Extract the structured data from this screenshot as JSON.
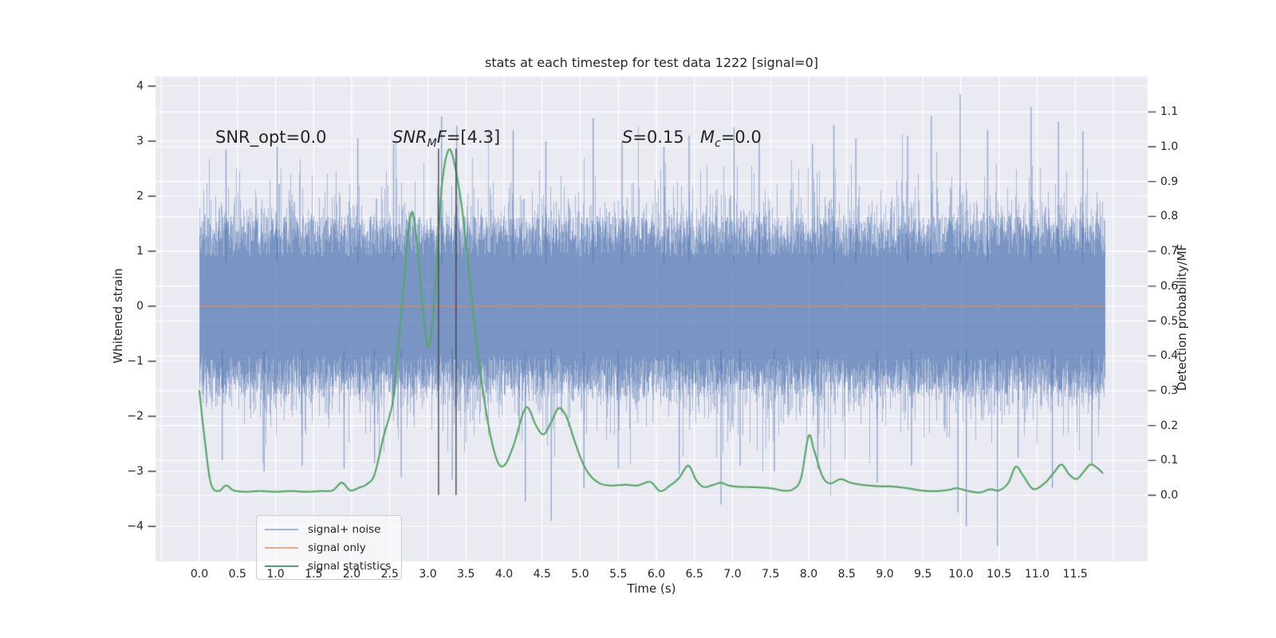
{
  "title": "stats at each timestep for test data 1222 [signal=0]",
  "annotations": {
    "snr_opt": {
      "text": "SNR_opt=0.0"
    },
    "snr_mf": {
      "base": "SNR",
      "sub": "M",
      "base2": "F",
      "value": "=[4.3]"
    },
    "s": {
      "base": "S",
      "value": "=0.15"
    },
    "m_c": {
      "base": "M",
      "sub": "c",
      "value": "=0.0"
    }
  },
  "axes": {
    "x": {
      "label": "Time (s)",
      "ticks": [
        {
          "v": 0.0,
          "label": "0.0"
        },
        {
          "v": 0.5,
          "label": "0.5"
        },
        {
          "v": 1.0,
          "label": "1.0"
        },
        {
          "v": 1.5,
          "label": "1.5"
        },
        {
          "v": 2.0,
          "label": "2.0"
        },
        {
          "v": 2.5,
          "label": "2.5"
        },
        {
          "v": 3.0,
          "label": "3.0"
        },
        {
          "v": 3.5,
          "label": "3.5"
        },
        {
          "v": 4.0,
          "label": "4.0"
        },
        {
          "v": 4.5,
          "label": "4.5"
        },
        {
          "v": 5.0,
          "label": "5.0"
        },
        {
          "v": 5.5,
          "label": "5.5"
        },
        {
          "v": 6.0,
          "label": "6.0"
        },
        {
          "v": 6.5,
          "label": "6.5"
        },
        {
          "v": 7.0,
          "label": "7.0"
        },
        {
          "v": 7.5,
          "label": "7.5"
        },
        {
          "v": 8.0,
          "label": "8.0"
        },
        {
          "v": 8.5,
          "label": "8.5"
        },
        {
          "v": 9.0,
          "label": "9.0"
        },
        {
          "v": 9.5,
          "label": "9.5"
        },
        {
          "v": 10.0,
          "label": "10.0"
        },
        {
          "v": 10.5,
          "label": "10.5"
        },
        {
          "v": 11.0,
          "label": "11.0"
        },
        {
          "v": 11.5,
          "label": "11.5"
        }
      ]
    },
    "y_left": {
      "label": "Whitened strain",
      "ticks": [
        {
          "v": 4,
          "label": "4"
        },
        {
          "v": 3,
          "label": "3"
        },
        {
          "v": 2,
          "label": "2"
        },
        {
          "v": 1,
          "label": "1"
        },
        {
          "v": 0,
          "label": "0"
        },
        {
          "v": -1,
          "label": "−1"
        },
        {
          "v": -2,
          "label": "−2"
        },
        {
          "v": -3,
          "label": "−3"
        },
        {
          "v": -4,
          "label": "−4"
        }
      ]
    },
    "y_right": {
      "label": "Detection probability/MF",
      "ticks": [
        {
          "v": 1.1,
          "label": "1.1"
        },
        {
          "v": 1.0,
          "label": "1.0"
        },
        {
          "v": 0.9,
          "label": "0.9"
        },
        {
          "v": 0.8,
          "label": "0.8"
        },
        {
          "v": 0.7,
          "label": "0.7"
        },
        {
          "v": 0.6,
          "label": "0.6"
        },
        {
          "v": 0.5,
          "label": "0.5"
        },
        {
          "v": 0.4,
          "label": "0.4"
        },
        {
          "v": 0.3,
          "label": "0.3"
        },
        {
          "v": 0.2,
          "label": "0.2"
        },
        {
          "v": 0.1,
          "label": "0.1"
        },
        {
          "v": 0.0,
          "label": "0.0"
        }
      ]
    }
  },
  "legend": {
    "items": [
      {
        "label": "signal+ noise",
        "color": "#a2b4d9"
      },
      {
        "label": "signal only",
        "color": "#eaa68f"
      },
      {
        "label": "signal statistics",
        "color": "#4aa566"
      }
    ]
  },
  "colors": {
    "axes_bg": "#eaeaf2",
    "grid": "#ffffff",
    "noise_blue": "#4c72b0",
    "signal_orange": "#dd8452",
    "stats_green": "#55a868",
    "marker_line": "#474747",
    "tick": "#3c3c3c",
    "text": "#262626"
  },
  "chart_data": {
    "type": "line",
    "title": "stats at each timestep for test data 1222 [signal=0]",
    "xlabel": "Time (s)",
    "ylabel_left": "Whitened strain",
    "ylabel_right": "Detection probability/MF",
    "xlim": [
      -0.58,
      12.45
    ],
    "ylim_left": [
      -4.64,
      4.17
    ],
    "ylim_right": [
      -0.19,
      1.2
    ],
    "grid": true,
    "legend_position": "lower left",
    "event_markers_t": [
      3.14,
      3.37
    ],
    "series": [
      {
        "name": "signal+ noise",
        "axis": "left",
        "kind": "noise_band",
        "t_range": [
          0,
          11.88
        ],
        "mean": 0.0,
        "core_band": [
          -1.6,
          1.6
        ],
        "typical_envelope": [
          -2.7,
          2.7
        ],
        "seed": 42,
        "spikes_pos": [
          [
            0.35,
            2.85
          ],
          [
            1.02,
            2.9
          ],
          [
            2.08,
            3.05
          ],
          [
            2.55,
            2.95
          ],
          [
            3.18,
            3.45
          ],
          [
            3.38,
            3.28
          ],
          [
            4.12,
            3.2
          ],
          [
            4.55,
            3.0
          ],
          [
            5.17,
            3.42
          ],
          [
            5.55,
            3.0
          ],
          [
            6.1,
            2.9
          ],
          [
            6.43,
            3.1
          ],
          [
            7.02,
            3.25
          ],
          [
            7.35,
            3.05
          ],
          [
            8.05,
            2.95
          ],
          [
            8.33,
            3.3
          ],
          [
            8.62,
            3.05
          ],
          [
            9.3,
            3.1
          ],
          [
            9.61,
            3.46
          ],
          [
            9.99,
            3.85
          ],
          [
            10.35,
            3.2
          ],
          [
            10.92,
            3.62
          ],
          [
            11.28,
            3.35
          ],
          [
            11.6,
            3.18
          ]
        ],
        "spikes_neg": [
          [
            0.3,
            -2.8
          ],
          [
            0.85,
            -3.0
          ],
          [
            1.35,
            -2.9
          ],
          [
            1.9,
            -2.95
          ],
          [
            2.3,
            -2.85
          ],
          [
            2.65,
            -3.1
          ],
          [
            3.32,
            -3.15
          ],
          [
            4.28,
            -3.55
          ],
          [
            4.62,
            -3.9
          ],
          [
            5.05,
            -3.3
          ],
          [
            5.5,
            -2.95
          ],
          [
            6.3,
            -3.05
          ],
          [
            6.85,
            -3.6
          ],
          [
            7.1,
            -2.9
          ],
          [
            7.55,
            -3.0
          ],
          [
            8.12,
            -2.95
          ],
          [
            8.9,
            -3.2
          ],
          [
            9.35,
            -2.9
          ],
          [
            9.96,
            -3.75
          ],
          [
            10.07,
            -4.0
          ],
          [
            10.48,
            -4.35
          ],
          [
            10.75,
            -2.75
          ],
          [
            11.2,
            -3.3
          ],
          [
            11.72,
            -2.9
          ]
        ]
      },
      {
        "name": "signal only",
        "axis": "left",
        "kind": "hline",
        "value": 0.0,
        "t_range": [
          0,
          11.88
        ]
      },
      {
        "name": "signal statistics",
        "axis": "right",
        "kind": "line",
        "points": [
          [
            0.0,
            0.3
          ],
          [
            0.07,
            0.16
          ],
          [
            0.15,
            0.035
          ],
          [
            0.25,
            0.012
          ],
          [
            0.35,
            0.028
          ],
          [
            0.45,
            0.014
          ],
          [
            0.6,
            0.01
          ],
          [
            0.8,
            0.012
          ],
          [
            1.0,
            0.01
          ],
          [
            1.2,
            0.012
          ],
          [
            1.4,
            0.01
          ],
          [
            1.6,
            0.012
          ],
          [
            1.75,
            0.014
          ],
          [
            1.87,
            0.036
          ],
          [
            1.98,
            0.014
          ],
          [
            2.1,
            0.022
          ],
          [
            2.2,
            0.032
          ],
          [
            2.3,
            0.06
          ],
          [
            2.42,
            0.17
          ],
          [
            2.5,
            0.23
          ],
          [
            2.56,
            0.3
          ],
          [
            2.65,
            0.52
          ],
          [
            2.77,
            0.8
          ],
          [
            2.85,
            0.74
          ],
          [
            2.95,
            0.5
          ],
          [
            3.02,
            0.43
          ],
          [
            3.1,
            0.6
          ],
          [
            3.18,
            0.88
          ],
          [
            3.27,
            0.99
          ],
          [
            3.35,
            0.95
          ],
          [
            3.45,
            0.82
          ],
          [
            3.55,
            0.62
          ],
          [
            3.65,
            0.42
          ],
          [
            3.78,
            0.22
          ],
          [
            3.9,
            0.105
          ],
          [
            4.0,
            0.085
          ],
          [
            4.12,
            0.14
          ],
          [
            4.25,
            0.235
          ],
          [
            4.32,
            0.25
          ],
          [
            4.42,
            0.2
          ],
          [
            4.52,
            0.175
          ],
          [
            4.62,
            0.21
          ],
          [
            4.72,
            0.25
          ],
          [
            4.82,
            0.225
          ],
          [
            4.92,
            0.16
          ],
          [
            5.02,
            0.1
          ],
          [
            5.12,
            0.06
          ],
          [
            5.25,
            0.035
          ],
          [
            5.4,
            0.028
          ],
          [
            5.6,
            0.03
          ],
          [
            5.75,
            0.028
          ],
          [
            5.92,
            0.038
          ],
          [
            6.05,
            0.012
          ],
          [
            6.18,
            0.028
          ],
          [
            6.3,
            0.05
          ],
          [
            6.42,
            0.085
          ],
          [
            6.52,
            0.045
          ],
          [
            6.62,
            0.024
          ],
          [
            6.75,
            0.03
          ],
          [
            6.85,
            0.036
          ],
          [
            6.95,
            0.028
          ],
          [
            7.1,
            0.024
          ],
          [
            7.3,
            0.023
          ],
          [
            7.5,
            0.02
          ],
          [
            7.68,
            0.013
          ],
          [
            7.8,
            0.018
          ],
          [
            7.9,
            0.05
          ],
          [
            8.0,
            0.17
          ],
          [
            8.07,
            0.13
          ],
          [
            8.18,
            0.055
          ],
          [
            8.28,
            0.034
          ],
          [
            8.42,
            0.046
          ],
          [
            8.55,
            0.036
          ],
          [
            8.7,
            0.03
          ],
          [
            8.9,
            0.026
          ],
          [
            9.1,
            0.025
          ],
          [
            9.3,
            0.02
          ],
          [
            9.5,
            0.013
          ],
          [
            9.7,
            0.012
          ],
          [
            9.85,
            0.016
          ],
          [
            9.95,
            0.02
          ],
          [
            10.1,
            0.012
          ],
          [
            10.25,
            0.008
          ],
          [
            10.38,
            0.017
          ],
          [
            10.5,
            0.014
          ],
          [
            10.62,
            0.035
          ],
          [
            10.72,
            0.082
          ],
          [
            10.82,
            0.055
          ],
          [
            10.95,
            0.018
          ],
          [
            11.1,
            0.035
          ],
          [
            11.22,
            0.065
          ],
          [
            11.32,
            0.088
          ],
          [
            11.42,
            0.06
          ],
          [
            11.52,
            0.047
          ],
          [
            11.62,
            0.07
          ],
          [
            11.7,
            0.088
          ],
          [
            11.78,
            0.08
          ],
          [
            11.86,
            0.064
          ]
        ]
      }
    ]
  }
}
